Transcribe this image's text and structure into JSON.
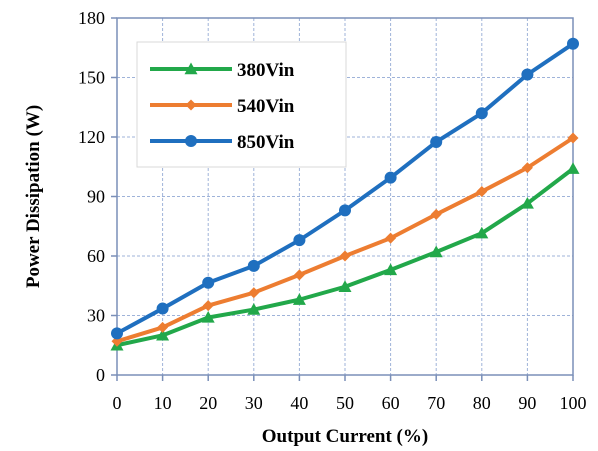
{
  "chart_data": {
    "type": "line",
    "xlabel": "Output Current (%)",
    "ylabel": "Power Dissipation (W)",
    "x": [
      0,
      10,
      20,
      30,
      40,
      50,
      60,
      70,
      80,
      90,
      100
    ],
    "xlim": [
      0,
      100
    ],
    "ylim": [
      0,
      180
    ],
    "xticks": [
      "0",
      "10",
      "20",
      "30",
      "40",
      "50",
      "60",
      "70",
      "80",
      "90",
      "100"
    ],
    "yticks": [
      "0",
      "30",
      "60",
      "90",
      "120",
      "150",
      "180"
    ],
    "grid": true,
    "legend_position": "top-left",
    "series": [
      {
        "name": "380Vin",
        "color": "#22a84a",
        "marker": "triangle",
        "values": [
          15,
          20,
          29,
          33,
          38,
          44.5,
          53,
          62,
          71.5,
          86.5,
          104
        ]
      },
      {
        "name": "540Vin",
        "color": "#ed7d31",
        "marker": "diamond",
        "values": [
          17,
          24,
          35,
          41.5,
          50.5,
          60,
          69,
          81,
          92.5,
          104.5,
          119.5
        ]
      },
      {
        "name": "850Vin",
        "color": "#1f6fbf",
        "marker": "circle",
        "values": [
          21,
          33.5,
          46.5,
          55,
          68,
          83,
          99.5,
          117.5,
          132,
          151.5,
          167
        ]
      }
    ]
  }
}
